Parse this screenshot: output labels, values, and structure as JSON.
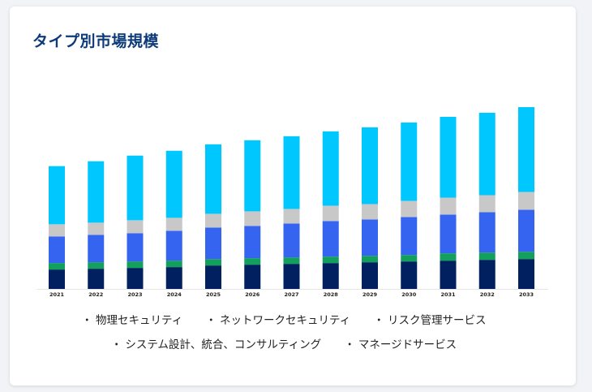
{
  "title": "タイプ別市場規模",
  "chart_data": {
    "type": "bar",
    "stacked": true,
    "categories": [
      "2021",
      "2022",
      "2023",
      "2024",
      "2025",
      "2026",
      "2027",
      "2028",
      "2029",
      "2030",
      "2031",
      "2032",
      "2033"
    ],
    "series": [
      {
        "name": "マネージドサービス",
        "color": "#00205f",
        "values": [
          24,
          25,
          26,
          27,
          29,
          30,
          31,
          32,
          33,
          34,
          35,
          36,
          37
        ]
      },
      {
        "name": "物理セキュリティ",
        "color": "#12a05c",
        "values": [
          8,
          8,
          8,
          8,
          8,
          8,
          8,
          8,
          8,
          8,
          9,
          9,
          9
        ]
      },
      {
        "name": "ネットワークセキュリティ",
        "color": "#3565f0",
        "values": [
          33,
          34,
          35,
          37,
          39,
          40,
          42,
          44,
          45,
          47,
          48,
          50,
          52
        ]
      },
      {
        "name": "リスク管理サービス",
        "color": "#c8c8c8",
        "values": [
          15,
          15,
          16,
          16,
          17,
          18,
          18,
          19,
          19,
          20,
          21,
          21,
          22
        ]
      },
      {
        "name": "システム設計、統合、コンサルティング",
        "color": "#00c8ff",
        "values": [
          72,
          76,
          80,
          83,
          86,
          88,
          90,
          92,
          95,
          97,
          100,
          102,
          105
        ]
      }
    ],
    "legend_position": "bottom",
    "grid": false
  },
  "legend": [
    {
      "label": "物理セキュリティ"
    },
    {
      "label": "ネットワークセキュリティ"
    },
    {
      "label": "リスク管理サービス"
    },
    {
      "label": "システム設計、統合、コンサルティング"
    },
    {
      "label": "マネージドサービス"
    }
  ]
}
